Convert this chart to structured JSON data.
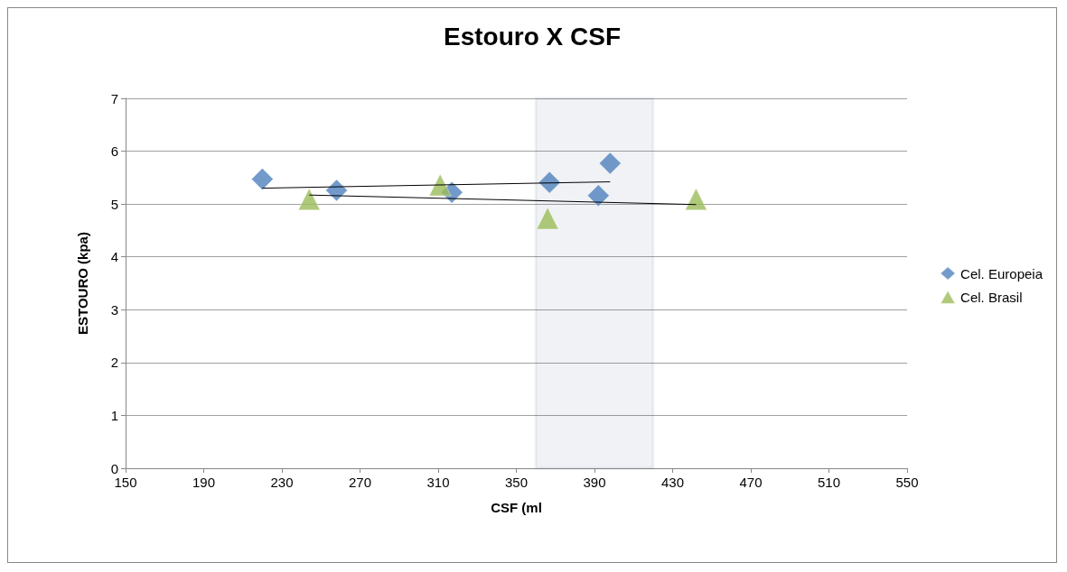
{
  "chart_data": {
    "type": "scatter",
    "title": "Estouro X CSF",
    "xlabel": "CSF (ml",
    "ylabel": "ESTOURO (kpa)",
    "xlim": [
      150,
      550
    ],
    "xticks": [
      150,
      190,
      230,
      270,
      310,
      350,
      390,
      430,
      470,
      510,
      550
    ],
    "ylim": [
      0,
      7
    ],
    "yticks": [
      0,
      1,
      2,
      3,
      4,
      5,
      6,
      7
    ],
    "grid": "y",
    "legend": "right",
    "series": [
      {
        "name": "Cel. Europeia",
        "color": "#4f81bd",
        "marker": "diamond",
        "x": [
          220,
          258,
          317,
          367,
          392,
          398
        ],
        "values": [
          5.47,
          5.26,
          5.22,
          5.41,
          5.16,
          5.77
        ]
      },
      {
        "name": "Cel. Brasil",
        "color": "#9bbb59",
        "marker": "triangle",
        "x": [
          244,
          311,
          366,
          442
        ],
        "values": [
          5.09,
          5.36,
          4.73,
          5.09
        ]
      },
      {
        "type": "line",
        "color": "#000000",
        "marker": "none",
        "x": [
          220,
          398
        ],
        "values": [
          5.3,
          5.42
        ]
      },
      {
        "type": "line",
        "color": "#000000",
        "marker": "none",
        "x": [
          244,
          442
        ],
        "values": [
          5.17,
          4.99
        ]
      }
    ],
    "bands": [
      {
        "axis": "x",
        "from": 360,
        "to": 420,
        "color": "#3b5b85"
      }
    ]
  }
}
